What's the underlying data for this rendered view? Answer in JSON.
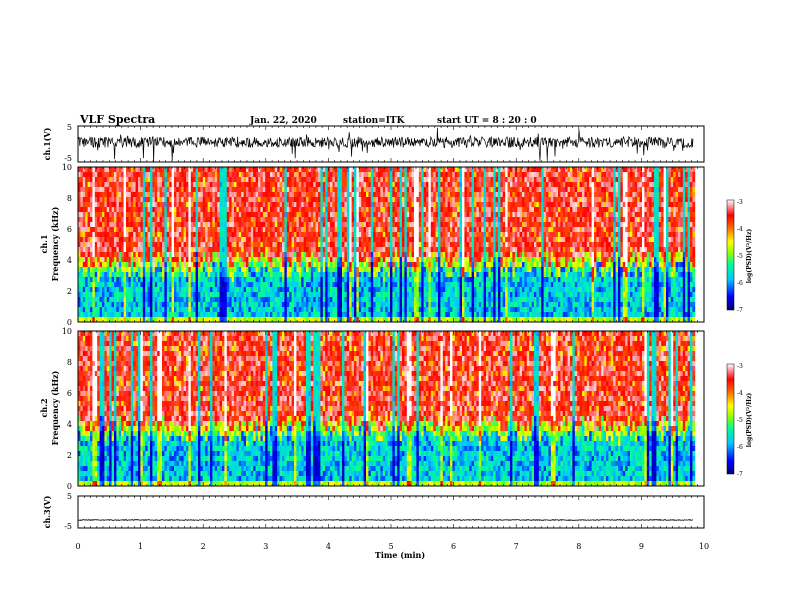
{
  "header": {
    "title": "VLF Spectra",
    "date": "Jan. 22, 2020",
    "station": "station=ITK",
    "start_ut": "start UT =  8 : 20 : 0"
  },
  "chart_data": [
    {
      "type": "line",
      "panel": "waveform-ch1",
      "ylabel": "ch.1(V)",
      "ylim": [
        -5,
        5
      ],
      "yticks": [
        "5",
        "-5"
      ],
      "x_range": [
        0,
        9.83
      ],
      "baseline": 0.5,
      "color": "#000000"
    },
    {
      "type": "heatmap",
      "panel": "spectrogram-ch1",
      "ylabel": "ch.1 Frequency (kHz)",
      "ylabel_line1": "ch.1",
      "ylabel_line2": "Frequency (kHz)",
      "ylim": [
        0,
        10
      ],
      "yticks": [
        "0",
        "2",
        "4",
        "6",
        "8",
        "10"
      ],
      "x_range": [
        0,
        9.83
      ],
      "colorbar": {
        "label": "log(PSD)(V²/Hz)",
        "range": [
          -7,
          -3
        ],
        "ticks": [
          "-3",
          "-4",
          "-5",
          "-6",
          "-7"
        ]
      }
    },
    {
      "type": "heatmap",
      "panel": "spectrogram-ch2",
      "ylabel": "ch.2 Frequency (kHz)",
      "ylabel_line1": "ch.2",
      "ylabel_line2": "Frequency (kHz)",
      "ylim": [
        0,
        10
      ],
      "yticks": [
        "0",
        "2",
        "4",
        "6",
        "8",
        "10"
      ],
      "x_range": [
        0,
        9.83
      ],
      "colorbar": {
        "label": "log(PSD)(V²/Hz)",
        "range": [
          -7,
          -3
        ],
        "ticks": [
          "-3",
          "-4",
          "-5",
          "-6",
          "-7"
        ]
      }
    },
    {
      "type": "line",
      "panel": "waveform-ch3",
      "ylabel": "ch.3(V)",
      "ylim": [
        -5,
        5
      ],
      "yticks": [
        "5",
        "-5"
      ],
      "x_range": [
        0,
        9.83
      ],
      "baseline": -2.5,
      "color": "#000000"
    }
  ],
  "x_axis": {
    "label": "Time (min)",
    "range": [
      0,
      10
    ],
    "ticks": [
      "0",
      "1",
      "2",
      "3",
      "4",
      "5",
      "6",
      "7",
      "8",
      "9",
      "10"
    ]
  },
  "colormap": [
    "#000070",
    "#0000ff",
    "#00c8ff",
    "#00ff90",
    "#90ff00",
    "#ffff00",
    "#ff7000",
    "#ff0000",
    "#ffffff"
  ]
}
